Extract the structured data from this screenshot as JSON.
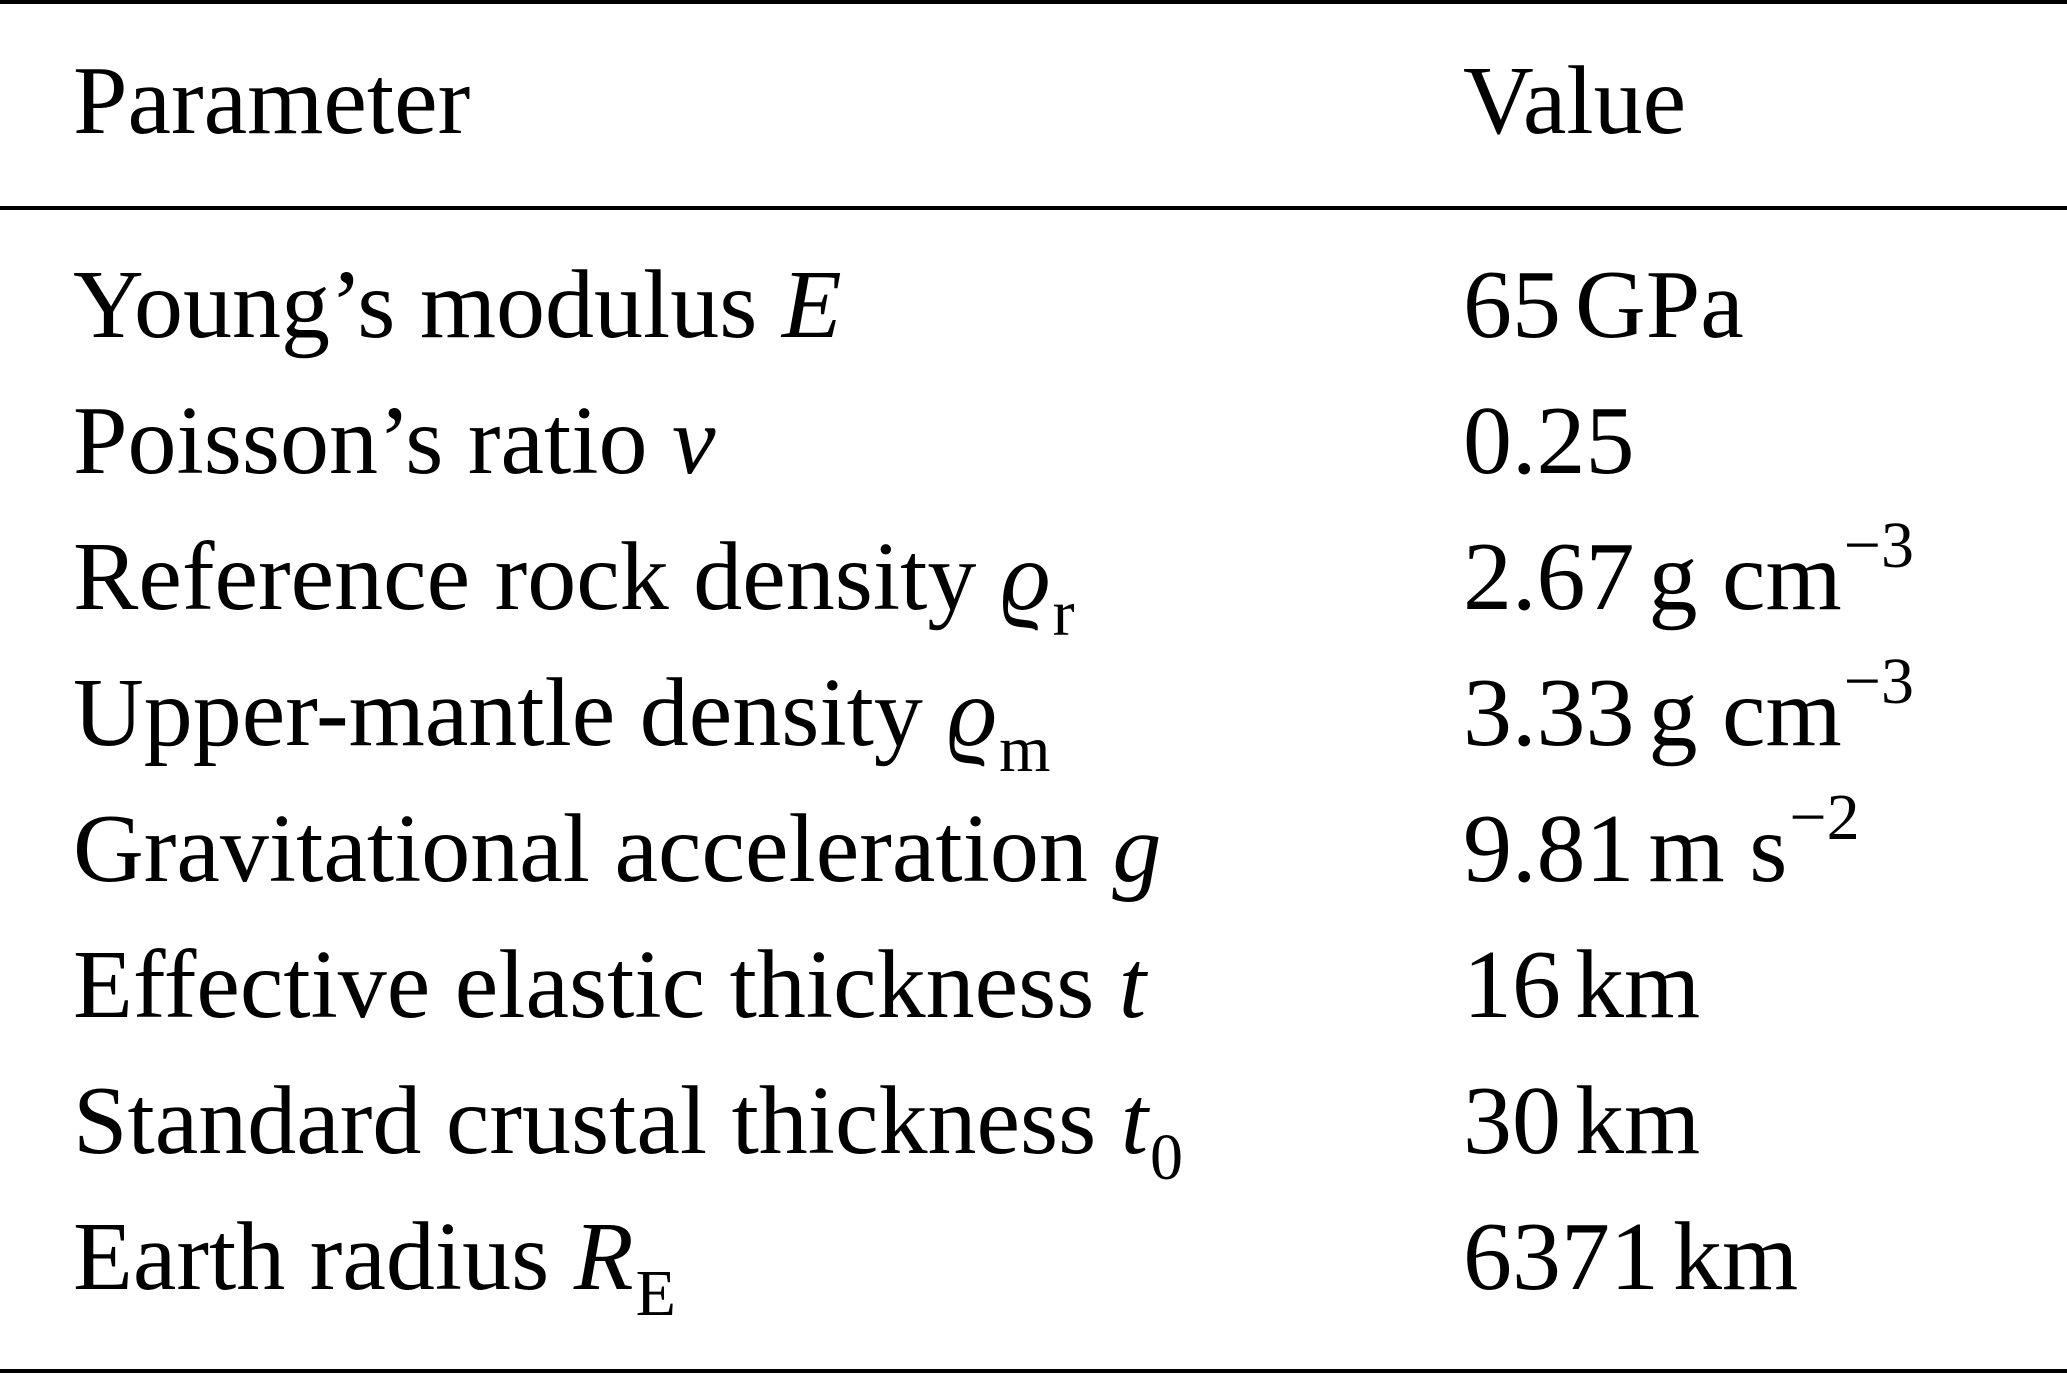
{
  "table": {
    "headers": {
      "parameter": "Parameter",
      "value": "Value"
    },
    "rows": [
      {
        "name": "Young’s modulus",
        "symbol": "E",
        "subscript": "",
        "number": "65",
        "unit": "GPa",
        "exponent": ""
      },
      {
        "name": "Poisson’s ratio",
        "symbol": "ν",
        "subscript": "",
        "number": "0.25",
        "unit": "",
        "exponent": ""
      },
      {
        "name": "Reference rock density",
        "symbol": "ϱ",
        "subscript": "r",
        "number": "2.67",
        "unit": "g cm",
        "exponent": "−3"
      },
      {
        "name": "Upper-mantle density",
        "symbol": "ϱ",
        "subscript": "m",
        "number": "3.33",
        "unit": "g cm",
        "exponent": "−3"
      },
      {
        "name": "Gravitational acceleration",
        "symbol": "g",
        "subscript": "",
        "number": "9.81",
        "unit": "m s",
        "exponent": "−2"
      },
      {
        "name": "Effective elastic thickness",
        "symbol": "t",
        "subscript": "",
        "number": "16",
        "unit": "km",
        "exponent": ""
      },
      {
        "name": "Standard crustal thickness",
        "symbol": "t",
        "subscript": "0",
        "number": "30",
        "unit": "km",
        "exponent": ""
      },
      {
        "name": "Earth radius",
        "symbol": "R",
        "subscript": "E",
        "number": "6371",
        "unit": "km",
        "exponent": ""
      }
    ]
  }
}
